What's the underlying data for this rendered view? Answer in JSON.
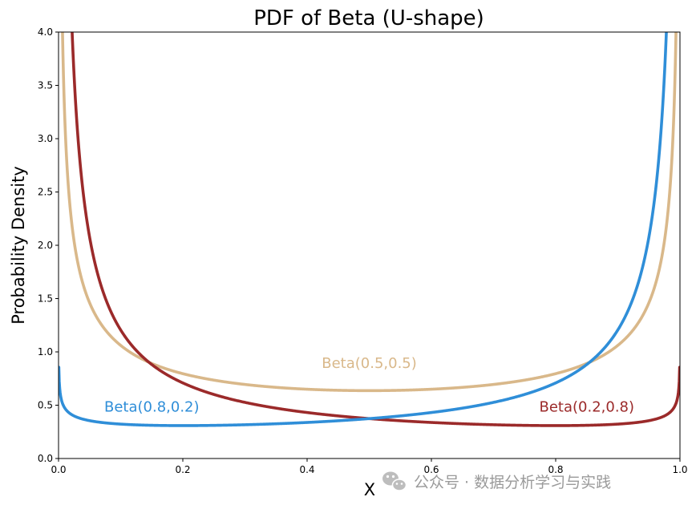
{
  "chart_data": {
    "type": "line",
    "title": "PDF of Beta (U-shape)",
    "xlabel": "X",
    "ylabel": "Probability Density",
    "xlim": [
      0.0,
      1.0
    ],
    "ylim": [
      0.0,
      4.0
    ],
    "x_ticks": [
      "0.0",
      "0.2",
      "0.4",
      "0.6",
      "0.8",
      "1.0"
    ],
    "y_ticks": [
      "0.0",
      "0.5",
      "1.0",
      "1.5",
      "2.0",
      "2.5",
      "3.0",
      "3.5",
      "4.0"
    ],
    "x_tick_values": [
      0.0,
      0.2,
      0.4,
      0.6,
      0.8,
      1.0
    ],
    "y_tick_values": [
      0.0,
      0.5,
      1.0,
      1.5,
      2.0,
      2.5,
      3.0,
      3.5,
      4.0
    ],
    "grid": false,
    "legend": "none (inline labels)",
    "series": [
      {
        "name": "Beta(0.5,0.5)",
        "alpha": 0.5,
        "beta": 0.5,
        "color": "#d9b88a",
        "label": "Beta(0.5,0.5)",
        "label_anchor": {
          "x": 0.5,
          "y": 0.85
        }
      },
      {
        "name": "Beta(0.2,0.8)",
        "alpha": 0.2,
        "beta": 0.8,
        "color": "#9b2a2a",
        "label": "Beta(0.2,0.8)",
        "label_anchor": {
          "x": 0.85,
          "y": 0.44
        }
      },
      {
        "name": "Beta(0.8,0.2)",
        "alpha": 0.8,
        "beta": 0.2,
        "color": "#2f8ed8",
        "label": "Beta(0.8,0.2)",
        "label_anchor": {
          "x": 0.15,
          "y": 0.44
        }
      }
    ]
  },
  "watermark": {
    "text": "公众号 · 数据分析学习与实践",
    "icon": "wechat-icon"
  }
}
